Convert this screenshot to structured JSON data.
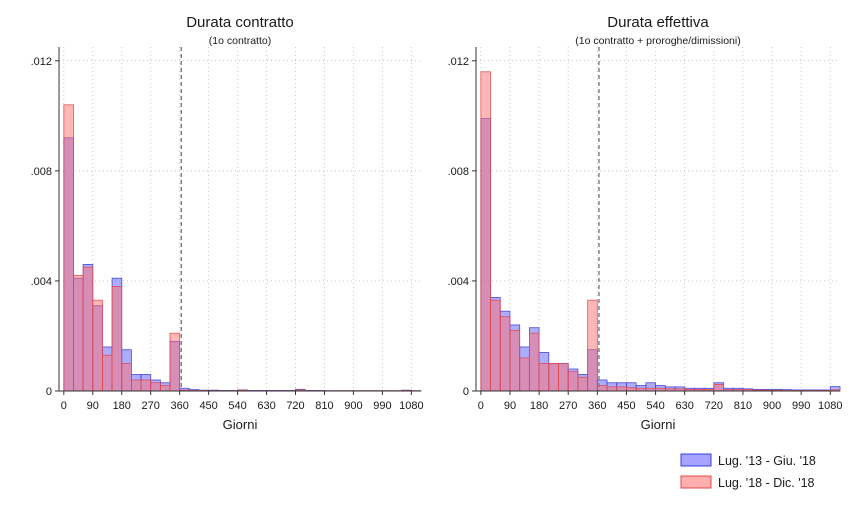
{
  "legend": {
    "entries": [
      {
        "label": "Lug. '13 - Giu. '18",
        "color": "#5b5bff",
        "stroke": "#3c3cd8"
      },
      {
        "label": "Lug. '18 - Dic. '18",
        "color": "#ff6e6e",
        "stroke": "#e04848"
      }
    ]
  },
  "chart_data": [
    {
      "type": "bar",
      "title": "Durata contratto",
      "subtitle": "(1o contratto)",
      "xlabel": "Giorni",
      "ylabel": "",
      "xlim": [
        -15,
        1110
      ],
      "ylim": [
        0,
        0.0125
      ],
      "xticks": [
        "0",
        "90",
        "180",
        "270",
        "360",
        "450",
        "540",
        "630",
        "720",
        "810",
        "900",
        "990",
        "1080"
      ],
      "yticks": [
        "0",
        ".004",
        ".008",
        ".012"
      ],
      "grid": "dotted",
      "reference_line_x": 365,
      "bin_width": 30,
      "series": [
        {
          "name": "Lug. '13 - Giu. '18",
          "x": [
            0,
            30,
            60,
            90,
            120,
            150,
            180,
            210,
            240,
            270,
            300,
            330,
            360,
            390,
            420,
            450,
            480,
            510,
            540,
            570,
            600,
            630,
            660,
            690,
            720,
            750,
            780,
            810,
            840,
            870,
            900,
            930,
            960,
            990,
            1020,
            1050,
            1080
          ],
          "values": [
            0.0092,
            0.0041,
            0.0046,
            0.0031,
            0.0016,
            0.0041,
            0.0015,
            0.0006,
            0.0006,
            0.0004,
            0.0003,
            0.0018,
            0.0001,
            5e-05,
            3e-05,
            3e-05,
            2e-05,
            2e-05,
            4e-05,
            2e-05,
            2e-05,
            2e-05,
            2e-05,
            2e-05,
            6e-05,
            2e-05,
            2e-05,
            1e-05,
            1e-05,
            1e-05,
            1e-05,
            1e-05,
            1e-05,
            1e-05,
            1e-05,
            3e-05,
            1e-05
          ]
        },
        {
          "name": "Lug. '18 - Dic. '18",
          "x": [
            0,
            30,
            60,
            90,
            120,
            150,
            180,
            210,
            240,
            270,
            300,
            330,
            360,
            390,
            420,
            450,
            480,
            510,
            540,
            570,
            600,
            630,
            660,
            690,
            720,
            750,
            780,
            810,
            840,
            870,
            900,
            930,
            960,
            990,
            1020,
            1050,
            1080
          ],
          "values": [
            0.0104,
            0.0042,
            0.0045,
            0.0033,
            0.0013,
            0.0038,
            0.001,
            0.0004,
            0.0004,
            0.0003,
            0.0002,
            0.0021,
            3e-05,
            2e-05,
            2e-05,
            1e-05,
            1e-05,
            1e-05,
            3e-05,
            1e-05,
            1e-05,
            1e-05,
            1e-05,
            1e-05,
            4e-05,
            1e-05,
            1e-05,
            1e-05,
            1e-05,
            1e-05,
            1e-05,
            1e-05,
            1e-05,
            1e-05,
            1e-05,
            2e-05,
            1e-05
          ]
        }
      ]
    },
    {
      "type": "bar",
      "title": "Durata effettiva",
      "subtitle": "(1o contratto + proroghe/dimissioni)",
      "xlabel": "Giorni",
      "ylabel": "",
      "xlim": [
        -15,
        1110
      ],
      "ylim": [
        0,
        0.0125
      ],
      "xticks": [
        "0",
        "90",
        "180",
        "270",
        "360",
        "450",
        "540",
        "630",
        "720",
        "810",
        "900",
        "990",
        "1080"
      ],
      "yticks": [
        "0",
        ".004",
        ".008",
        ".012"
      ],
      "grid": "dotted",
      "reference_line_x": 365,
      "bin_width": 30,
      "series": [
        {
          "name": "Lug. '13 - Giu. '18",
          "x": [
            0,
            30,
            60,
            90,
            120,
            150,
            180,
            210,
            240,
            270,
            300,
            330,
            360,
            390,
            420,
            450,
            480,
            510,
            540,
            570,
            600,
            630,
            660,
            690,
            720,
            750,
            780,
            810,
            840,
            870,
            900,
            930,
            960,
            990,
            1020,
            1050,
            1080
          ],
          "values": [
            0.0099,
            0.0034,
            0.0029,
            0.0024,
            0.0016,
            0.0023,
            0.0014,
            0.001,
            0.001,
            0.0008,
            0.0006,
            0.0015,
            0.0004,
            0.0003,
            0.0003,
            0.0003,
            0.0002,
            0.0003,
            0.0002,
            0.00015,
            0.00015,
            0.0001,
            0.0001,
            0.0001,
            0.0003,
            0.0001,
            0.0001,
            8e-05,
            6e-05,
            6e-05,
            6e-05,
            5e-05,
            4e-05,
            4e-05,
            4e-05,
            4e-05,
            0.00016
          ]
        },
        {
          "name": "Lug. '18 - Dic. '18",
          "x": [
            0,
            30,
            60,
            90,
            120,
            150,
            180,
            210,
            240,
            270,
            300,
            330,
            360,
            390,
            420,
            450,
            480,
            510,
            540,
            570,
            600,
            630,
            660,
            690,
            720,
            750,
            780,
            810,
            840,
            870,
            900,
            930,
            960,
            990,
            1020,
            1050,
            1080
          ],
          "values": [
            0.0116,
            0.0033,
            0.0027,
            0.0022,
            0.0012,
            0.0021,
            0.001,
            0.001,
            0.001,
            0.0007,
            0.0005,
            0.0033,
            0.0002,
            0.00015,
            0.00015,
            0.00012,
            0.0001,
            0.0001,
            0.0001,
            8e-05,
            8e-05,
            6e-05,
            6e-05,
            6e-05,
            0.00024,
            5e-05,
            5e-05,
            5e-05,
            3e-05,
            3e-05,
            3e-05,
            2e-05,
            2e-05,
            2e-05,
            2e-05,
            2e-05,
            4e-05
          ]
        }
      ]
    }
  ]
}
